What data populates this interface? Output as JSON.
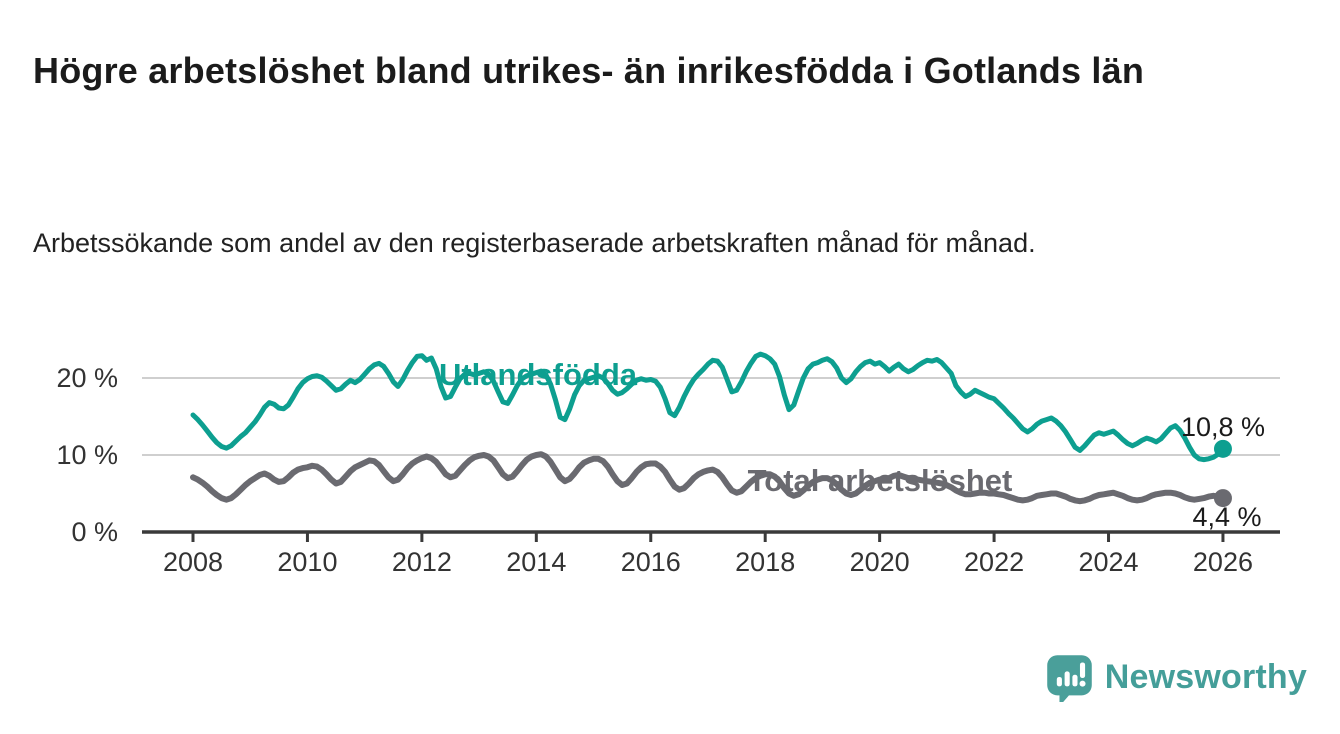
{
  "header": {
    "title": "Högre arbetslöshet bland utrikes- än inrikesfödda i Gotlands län",
    "subtitle": "Arbetssökande som andel av den registerbaserade arbetskraften månad för månad."
  },
  "chart_data": {
    "type": "line",
    "unit": "%",
    "x_start": "2008-01",
    "x_end": "2026-01",
    "x_tick_labels": [
      "2008",
      "2010",
      "2012",
      "2014",
      "2016",
      "2018",
      "2020",
      "2022",
      "2024",
      "2026"
    ],
    "y_ticks": [
      {
        "label": "0 %",
        "value": 0
      },
      {
        "label": "10 %",
        "value": 10
      },
      {
        "label": "20 %",
        "value": 20
      }
    ],
    "ylim": [
      0,
      24
    ],
    "grid": "horizontal-only",
    "colors": {
      "gridline": "#cfcfcf",
      "axis": "#3a3a3a",
      "tick_text": "#333333"
    },
    "series": [
      {
        "name": "Utlandsfödda",
        "color": "#0d9f90",
        "end_value": 10.8,
        "end_value_label": "10,8 %",
        "monthly_values": [
          15.2,
          14.6,
          13.9,
          13.1,
          12.3,
          11.6,
          11.1,
          10.9,
          11.2,
          11.8,
          12.4,
          12.9,
          13.6,
          14.3,
          15.2,
          16.2,
          16.8,
          16.6,
          16.1,
          16.0,
          16.5,
          17.5,
          18.6,
          19.4,
          19.9,
          20.2,
          20.3,
          20.1,
          19.6,
          19.0,
          18.4,
          18.6,
          19.2,
          19.7,
          19.4,
          19.8,
          20.5,
          21.2,
          21.7,
          21.9,
          21.5,
          20.6,
          19.5,
          18.9,
          19.8,
          21.0,
          22.0,
          22.8,
          22.9,
          22.3,
          22.6,
          21.2,
          18.9,
          17.4,
          17.6,
          18.8,
          19.9,
          20.5,
          20.6,
          20.4,
          20.6,
          20.8,
          20.5,
          19.6,
          18.2,
          16.9,
          16.7,
          17.8,
          19.0,
          19.9,
          20.3,
          20.5,
          20.7,
          20.9,
          20.4,
          19.2,
          17.2,
          14.9,
          14.6,
          16.0,
          17.8,
          19.0,
          19.7,
          19.9,
          20.1,
          20.3,
          20.0,
          19.3,
          18.4,
          17.9,
          18.1,
          18.6,
          19.2,
          19.7,
          19.9,
          19.7,
          19.8,
          19.6,
          18.8,
          17.3,
          15.5,
          15.1,
          16.2,
          17.6,
          18.8,
          19.8,
          20.5,
          21.1,
          21.8,
          22.3,
          22.2,
          21.4,
          19.8,
          18.2,
          18.4,
          19.5,
          20.8,
          21.9,
          22.8,
          23.1,
          22.9,
          22.5,
          21.8,
          20.2,
          17.8,
          15.9,
          16.5,
          18.3,
          20.0,
          21.2,
          21.8,
          22.0,
          22.3,
          22.5,
          22.1,
          21.3,
          20.0,
          19.4,
          19.9,
          20.8,
          21.5,
          22.0,
          22.2,
          21.8,
          22.0,
          21.5,
          20.9,
          21.4,
          21.8,
          21.2,
          20.8,
          21.1,
          21.6,
          22.0,
          22.3,
          22.2,
          22.4,
          22.0,
          21.3,
          20.6,
          19.0,
          18.2,
          17.6,
          17.9,
          18.4,
          18.1,
          17.8,
          17.5,
          17.3,
          16.7,
          16.1,
          15.4,
          14.8,
          14.1,
          13.4,
          13.0,
          13.4,
          14.0,
          14.4,
          14.6,
          14.8,
          14.4,
          13.8,
          13.0,
          12.0,
          11.0,
          10.6,
          11.2,
          11.9,
          12.6,
          12.9,
          12.7,
          12.9,
          13.1,
          12.6,
          12.0,
          11.5,
          11.2,
          11.5,
          11.9,
          12.2,
          12.0,
          11.7,
          12.1,
          12.8,
          13.5,
          13.8,
          13.2,
          12.2,
          11.0,
          10.0,
          9.5,
          9.4,
          9.5,
          9.7,
          10.1,
          10.8
        ]
      },
      {
        "name": "Total arbetslöshet",
        "color": "#6a6a70",
        "end_value": 4.4,
        "end_value_label": "4,4 %",
        "monthly_values": [
          7.1,
          6.8,
          6.4,
          5.9,
          5.3,
          4.8,
          4.4,
          4.2,
          4.4,
          4.9,
          5.5,
          6.1,
          6.6,
          7.0,
          7.4,
          7.6,
          7.3,
          6.8,
          6.5,
          6.6,
          7.1,
          7.7,
          8.1,
          8.3,
          8.4,
          8.6,
          8.5,
          8.1,
          7.5,
          6.8,
          6.3,
          6.5,
          7.2,
          7.9,
          8.4,
          8.7,
          9.0,
          9.3,
          9.2,
          8.7,
          7.9,
          7.1,
          6.6,
          6.8,
          7.5,
          8.3,
          8.9,
          9.3,
          9.6,
          9.8,
          9.6,
          9.1,
          8.3,
          7.5,
          7.1,
          7.3,
          8.0,
          8.7,
          9.3,
          9.7,
          9.9,
          10.0,
          9.8,
          9.3,
          8.4,
          7.5,
          7.0,
          7.2,
          7.9,
          8.7,
          9.4,
          9.8,
          10.0,
          10.1,
          9.8,
          9.1,
          8.1,
          7.1,
          6.6,
          6.9,
          7.6,
          8.4,
          9.0,
          9.3,
          9.5,
          9.5,
          9.2,
          8.5,
          7.5,
          6.6,
          6.1,
          6.3,
          7.0,
          7.8,
          8.4,
          8.8,
          8.9,
          8.9,
          8.5,
          7.8,
          6.8,
          5.9,
          5.5,
          5.7,
          6.3,
          7.0,
          7.5,
          7.8,
          8.0,
          8.1,
          7.8,
          7.1,
          6.2,
          5.4,
          5.1,
          5.3,
          5.9,
          6.5,
          7.0,
          7.3,
          7.5,
          7.5,
          7.2,
          6.6,
          5.7,
          5.0,
          4.7,
          4.9,
          5.4,
          6.0,
          6.5,
          6.8,
          7.0,
          7.0,
          6.7,
          6.2,
          5.5,
          5.0,
          4.8,
          5.0,
          5.5,
          6.0,
          6.4,
          6.6,
          6.8,
          6.9,
          7.0,
          7.3,
          7.4,
          7.2,
          7.0,
          6.9,
          6.8,
          6.7,
          6.6,
          6.5,
          6.4,
          6.3,
          6.1,
          5.8,
          5.4,
          5.1,
          4.9,
          4.9,
          5.0,
          5.1,
          5.1,
          5.0,
          5.0,
          4.9,
          4.8,
          4.6,
          4.4,
          4.2,
          4.1,
          4.2,
          4.4,
          4.7,
          4.8,
          4.9,
          5.0,
          5.0,
          4.8,
          4.6,
          4.3,
          4.1,
          4.0,
          4.1,
          4.3,
          4.6,
          4.8,
          4.9,
          5.0,
          5.1,
          4.9,
          4.7,
          4.4,
          4.2,
          4.1,
          4.2,
          4.4,
          4.7,
          4.9,
          5.0,
          5.1,
          5.1,
          5.0,
          4.8,
          4.5,
          4.3,
          4.2,
          4.3,
          4.4,
          4.6,
          4.7,
          4.6,
          4.4
        ]
      }
    ]
  },
  "footer": {
    "brand": "Newsworthy",
    "brand_color": "#449e99",
    "logo_icon": "bar-chart-speech-bubble-icon"
  }
}
